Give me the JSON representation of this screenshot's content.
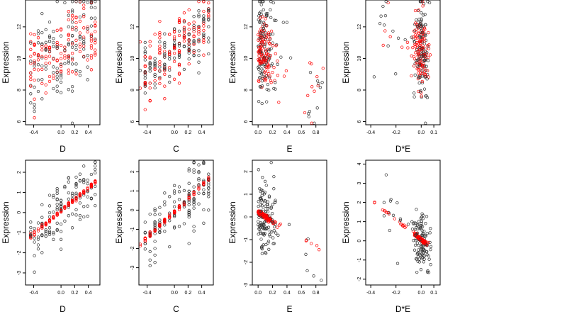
{
  "chart_data": [
    {
      "type": "scatter",
      "xlabel": "D",
      "ylabel": "Expression",
      "xticks": [
        "-0.4",
        "0.0",
        "0.2",
        "0.4"
      ],
      "xtick_values": [
        -0.4,
        0,
        0.2,
        0.4
      ],
      "yticks": [
        "6",
        "8",
        "10",
        "12"
      ],
      "ytick_values": [
        6,
        8,
        10,
        12
      ],
      "xlim": [
        -0.52,
        0.57
      ],
      "ylim": [
        5.8,
        13.7
      ],
      "series": [
        {
          "color": "#000000",
          "values_approx": "grey points spread 6–13"
        },
        {
          "color": "#ff0000",
          "values_approx": "red points 8–13"
        }
      ]
    },
    {
      "type": "scatter",
      "xlabel": "C",
      "ylabel": "Expression",
      "xticks": [
        "-0.4",
        "0.0",
        "0.2",
        "0.4"
      ],
      "xtick_values": [
        -0.4,
        0,
        0.2,
        0.4
      ],
      "yticks": [
        "6",
        "8",
        "10",
        "12"
      ],
      "ytick_values": [
        6,
        8,
        10,
        12
      ],
      "xlim": [
        -0.52,
        0.57
      ],
      "ylim": [
        5.8,
        13.7
      ],
      "series": [
        {
          "color": "#000000"
        },
        {
          "color": "#ff0000"
        }
      ]
    },
    {
      "type": "scatter",
      "xlabel": "E",
      "ylabel": "Expression",
      "xticks": [
        "0.0",
        "0.2",
        "0.4",
        "0.6",
        "0.8"
      ],
      "xtick_values": [
        0,
        0.2,
        0.4,
        0.6,
        0.8
      ],
      "yticks": [
        "6",
        "8",
        "10",
        "12"
      ],
      "ytick_values": [
        6,
        8,
        10,
        12
      ],
      "xlim": [
        -0.08,
        0.95
      ],
      "ylim": [
        5.8,
        13.7
      ],
      "series": [
        {
          "color": "#000000"
        },
        {
          "color": "#ff0000"
        }
      ]
    },
    {
      "type": "scatter",
      "xlabel": "D*E",
      "ylabel": "Expression",
      "xticks": [
        "-0.4",
        "-0.2",
        "0.0",
        "0.1"
      ],
      "xtick_values": [
        -0.4,
        -0.2,
        0,
        0.1
      ],
      "yticks": [
        "6",
        "8",
        "10",
        "12"
      ],
      "ytick_values": [
        6,
        8,
        10,
        12
      ],
      "xlim": [
        -0.44,
        0.15
      ],
      "ylim": [
        5.8,
        13.7
      ],
      "series": [
        {
          "color": "#000000"
        },
        {
          "color": "#ff0000"
        }
      ]
    },
    {
      "type": "scatter",
      "xlabel": "D",
      "ylabel": "Expression",
      "xticks": [
        "-0.4",
        "0.0",
        "0.2",
        "0.4"
      ],
      "xtick_values": [
        -0.4,
        0,
        0.2,
        0.4
      ],
      "yticks": [
        "-3",
        "-2",
        "-1",
        "0",
        "1",
        "2"
      ],
      "ytick_values": [
        -3,
        -2,
        -1,
        0,
        1,
        2
      ],
      "xlim": [
        -0.52,
        0.57
      ],
      "ylim": [
        -3.6,
        2.6
      ],
      "series": [
        {
          "color": "#000000"
        },
        {
          "color": "#ff0000",
          "fit": [
            [
              -0.47,
              -1.25
            ],
            [
              0.5,
              1.5
            ]
          ]
        }
      ]
    },
    {
      "type": "scatter",
      "xlabel": "C",
      "ylabel": "Expression",
      "xticks": [
        "-0.4",
        "0.0",
        "0.2",
        "0.4"
      ],
      "xtick_values": [
        -0.4,
        0,
        0.2,
        0.4
      ],
      "yticks": [
        "-3",
        "-2",
        "-1",
        "0",
        "1",
        "2"
      ],
      "ytick_values": [
        -3,
        -2,
        -1,
        0,
        1,
        2
      ],
      "xlim": [
        -0.52,
        0.57
      ],
      "ylim": [
        -3.9,
        2.6
      ],
      "series": [
        {
          "color": "#000000"
        },
        {
          "color": "#ff0000",
          "fit": [
            [
              -0.48,
              -1.7
            ],
            [
              0.5,
              1.6
            ]
          ]
        }
      ]
    },
    {
      "type": "scatter",
      "xlabel": "E",
      "ylabel": "Expression",
      "xticks": [
        "0.0",
        "0.2",
        "0.4",
        "0.6",
        "0.8"
      ],
      "xtick_values": [
        0,
        0.2,
        0.4,
        0.6,
        0.8
      ],
      "yticks": [
        "-3",
        "-2",
        "-1",
        "0",
        "1",
        "2"
      ],
      "ytick_values": [
        -3,
        -2,
        -1,
        0,
        1,
        2
      ],
      "xlim": [
        -0.08,
        0.95
      ],
      "ylim": [
        -3.0,
        2.5
      ],
      "series": [
        {
          "color": "#000000"
        },
        {
          "color": "#ff0000",
          "fit": [
            [
              0.0,
              0.2
            ],
            [
              0.88,
              -1.45
            ]
          ]
        }
      ]
    },
    {
      "type": "scatter",
      "xlabel": "D*E",
      "ylabel": "Expression",
      "xticks": [
        "-0.4",
        "-0.2",
        "0.0",
        "0.1"
      ],
      "xtick_values": [
        -0.4,
        -0.2,
        0,
        0.1
      ],
      "yticks": [
        "-2",
        "-1",
        "0",
        "1",
        "2",
        "3",
        "4"
      ],
      "ytick_values": [
        -2,
        -1,
        0,
        1,
        2,
        3,
        4
      ],
      "xlim": [
        -0.44,
        0.15
      ],
      "ylim": [
        -2.3,
        4.2
      ],
      "series": [
        {
          "color": "#000000"
        },
        {
          "color": "#ff0000",
          "fit": [
            [
              -0.42,
              2.25
            ],
            [
              0.12,
              -0.55
            ]
          ]
        }
      ]
    }
  ]
}
